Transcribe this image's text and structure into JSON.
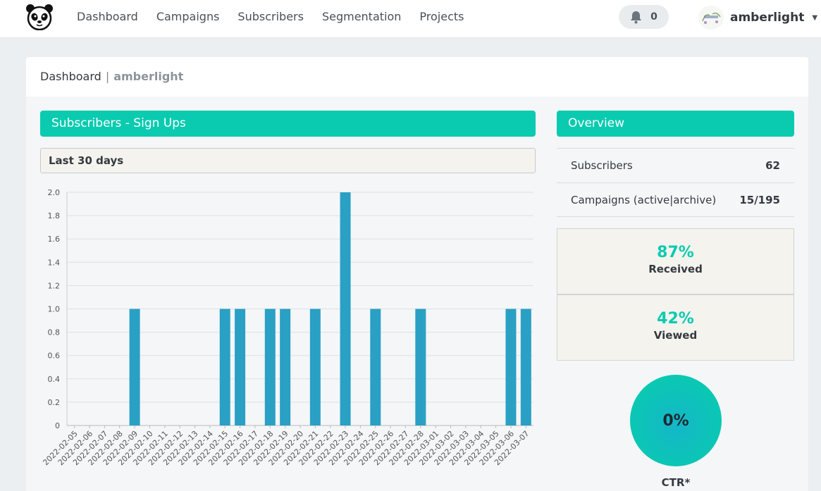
{
  "nav": {
    "items": [
      {
        "label": "Dashboard"
      },
      {
        "label": "Campaigns"
      },
      {
        "label": "Subscribers"
      },
      {
        "label": "Segmentation"
      },
      {
        "label": "Projects"
      }
    ],
    "notifications_count": "0",
    "user_name": "amberlight",
    "icons": {
      "logo": "panda-logo-icon",
      "bell": "bell-icon",
      "caret": "caret-down-icon"
    }
  },
  "breadcrumb": {
    "root": "Dashboard",
    "separator": "|",
    "current": "amberlight"
  },
  "signups": {
    "title": "Subscribers - Sign Ups",
    "period": "Last 30 days"
  },
  "overview": {
    "title": "Overview",
    "rows": [
      {
        "label": "Subscribers",
        "value": "62"
      },
      {
        "label": "Campaigns (active|archive)",
        "value": "15/195"
      }
    ],
    "received": {
      "percent": "87%",
      "label": "Received"
    },
    "viewed": {
      "percent": "42%",
      "label": "Viewed"
    },
    "ctr": {
      "value": "0%",
      "label": "CTR*"
    }
  },
  "colors": {
    "accent": "#0acbb0",
    "bar": "#2aa0c4"
  },
  "chart_data": {
    "type": "bar",
    "categories": [
      "2022-02-05",
      "2022-02-06",
      "2022-02-07",
      "2022-02-08",
      "2022-02-09",
      "2022-02-10",
      "2022-02-11",
      "2022-02-12",
      "2022-02-13",
      "2022-02-14",
      "2022-02-15",
      "2022-02-16",
      "2022-02-17",
      "2022-02-18",
      "2022-02-19",
      "2022-02-20",
      "2022-02-21",
      "2022-02-22",
      "2022-02-23",
      "2022-02-24",
      "2022-02-25",
      "2022-02-26",
      "2022-02-27",
      "2022-02-28",
      "2022-03-01",
      "2022-03-02",
      "2022-03-03",
      "2022-03-04",
      "2022-03-05",
      "2022-03-06",
      "2022-03-07"
    ],
    "values": [
      0,
      0,
      0,
      0,
      1,
      0,
      0,
      0,
      0,
      0,
      1,
      1,
      0,
      1,
      1,
      0,
      1,
      0,
      2,
      0,
      1,
      0,
      0,
      1,
      0,
      0,
      0,
      0,
      0,
      1,
      1
    ],
    "yticks": [
      "0",
      "0.2",
      "0.4",
      "0.6",
      "0.8",
      "1.0",
      "1.2",
      "1.4",
      "1.6",
      "1.8",
      "2.0"
    ],
    "ylim": [
      0,
      2
    ],
    "grid": true,
    "legend": "none"
  }
}
